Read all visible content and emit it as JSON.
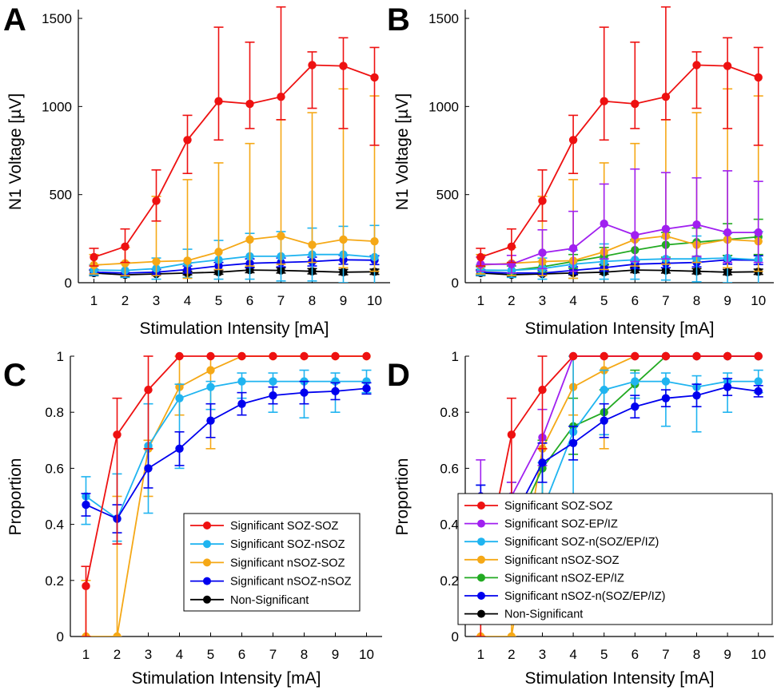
{
  "chart_data": [
    {
      "type": "line",
      "panel_label": "A",
      "xlabel": "Stimulation Intensity [mA]",
      "ylabel": "N1 Voltage [µV]",
      "x": [
        1,
        2,
        3,
        4,
        5,
        6,
        7,
        8,
        9,
        10
      ],
      "xlim": [
        0.5,
        10.5
      ],
      "ylim": [
        0,
        1550
      ],
      "yticks": [
        0,
        500,
        1000,
        1500
      ],
      "legend": null,
      "series": [
        {
          "name": "Non-Significant",
          "color": "#000000",
          "values": [
            55,
            45,
            50,
            55,
            60,
            72,
            70,
            65,
            60,
            62
          ],
          "err_low": [
            15,
            10,
            10,
            10,
            12,
            15,
            15,
            15,
            15,
            15
          ],
          "err_high": [
            15,
            10,
            10,
            10,
            12,
            15,
            15,
            15,
            15,
            15
          ]
        },
        {
          "name": "Significant nSOZ-nSOZ",
          "color": "#0000ee",
          "values": [
            60,
            55,
            60,
            75,
            95,
            110,
            115,
            120,
            130,
            128
          ],
          "err_low": [
            15,
            15,
            15,
            20,
            20,
            25,
            25,
            25,
            25,
            25
          ],
          "err_high": [
            15,
            15,
            15,
            20,
            20,
            25,
            25,
            25,
            25,
            25
          ]
        },
        {
          "name": "Significant SOZ-nSOZ",
          "color": "#1fb4f0",
          "values": [
            72,
            70,
            80,
            110,
            130,
            150,
            150,
            160,
            160,
            145
          ],
          "err_low": [
            30,
            40,
            60,
            80,
            110,
            130,
            140,
            150,
            160,
            180
          ],
          "err_high": [
            30,
            40,
            60,
            80,
            110,
            130,
            140,
            150,
            160,
            180
          ]
        },
        {
          "name": "Significant nSOZ-SOZ",
          "color": "#f5a816",
          "values": [
            100,
            110,
            120,
            125,
            175,
            245,
            265,
            215,
            245,
            235
          ],
          "err_low": [
            50,
            70,
            80,
            100,
            100,
            150,
            160,
            100,
            160,
            170
          ],
          "err_high": [
            60,
            90,
            370,
            460,
            505,
            545,
            660,
            750,
            855,
            825
          ]
        },
        {
          "name": "Significant SOZ-SOZ",
          "color": "#ee1111",
          "values": [
            145,
            205,
            465,
            810,
            1030,
            1015,
            1055,
            1235,
            1230,
            1165
          ],
          "err_low": [
            50,
            90,
            115,
            190,
            220,
            140,
            130,
            245,
            355,
            385
          ],
          "err_high": [
            50,
            100,
            175,
            140,
            420,
            350,
            510,
            75,
            160,
            170
          ]
        }
      ]
    },
    {
      "type": "line",
      "panel_label": "B",
      "xlabel": "Stimulation Intensity [mA]",
      "ylabel": "N1 Voltage [µV]",
      "x": [
        1,
        2,
        3,
        4,
        5,
        6,
        7,
        8,
        9,
        10
      ],
      "xlim": [
        0.5,
        10.5
      ],
      "ylim": [
        0,
        1550
      ],
      "yticks": [
        0,
        500,
        1000,
        1500
      ],
      "legend": null,
      "series": [
        {
          "name": "Non-Significant",
          "color": "#000000",
          "values": [
            55,
            45,
            50,
            55,
            60,
            72,
            70,
            65,
            60,
            62
          ],
          "err_low": [
            15,
            10,
            10,
            10,
            12,
            15,
            15,
            15,
            15,
            15
          ],
          "err_high": [
            15,
            10,
            10,
            10,
            12,
            15,
            15,
            15,
            15,
            15
          ]
        },
        {
          "name": "Significant nSOZ-n(SOZ/EP/IZ)",
          "color": "#0000ee",
          "values": [
            60,
            55,
            55,
            70,
            85,
            105,
            110,
            115,
            130,
            128
          ],
          "err_low": [
            15,
            15,
            15,
            20,
            20,
            25,
            25,
            25,
            25,
            25
          ],
          "err_high": [
            15,
            15,
            15,
            20,
            20,
            25,
            25,
            25,
            25,
            25
          ]
        },
        {
          "name": "Significant nSOZ-EP/IZ",
          "color": "#22aa22",
          "values": [
            70,
            70,
            90,
            120,
            150,
            185,
            215,
            230,
            245,
            260
          ],
          "err_low": [
            20,
            25,
            30,
            40,
            50,
            60,
            70,
            80,
            90,
            100
          ],
          "err_high": [
            20,
            25,
            30,
            40,
            50,
            60,
            70,
            80,
            90,
            100
          ]
        },
        {
          "name": "Significant SOZ-n(SOZ/EP/IZ)",
          "color": "#1fb4f0",
          "values": [
            72,
            70,
            80,
            105,
            120,
            130,
            135,
            135,
            140,
            130
          ],
          "err_low": [
            30,
            40,
            60,
            80,
            100,
            110,
            120,
            130,
            140,
            160
          ],
          "err_high": [
            30,
            40,
            60,
            80,
            100,
            110,
            120,
            130,
            140,
            160
          ]
        },
        {
          "name": "Significant nSOZ-SOZ",
          "color": "#f5a816",
          "values": [
            100,
            110,
            120,
            125,
            175,
            245,
            265,
            215,
            245,
            235
          ],
          "err_low": [
            50,
            70,
            80,
            100,
            100,
            150,
            160,
            100,
            160,
            170
          ],
          "err_high": [
            60,
            90,
            370,
            460,
            505,
            545,
            660,
            750,
            855,
            825
          ]
        },
        {
          "name": "Significant SOZ-EP/IZ",
          "color": "#a020f0",
          "values": [
            105,
            105,
            170,
            195,
            335,
            270,
            305,
            330,
            285,
            285
          ],
          "err_low": [
            40,
            50,
            90,
            130,
            200,
            150,
            170,
            180,
            170,
            170
          ],
          "err_high": [
            40,
            50,
            130,
            210,
            225,
            375,
            320,
            265,
            350,
            290
          ]
        },
        {
          "name": "Significant SOZ-SOZ",
          "color": "#ee1111",
          "values": [
            145,
            205,
            465,
            810,
            1030,
            1015,
            1055,
            1235,
            1230,
            1165
          ],
          "err_low": [
            50,
            90,
            115,
            190,
            220,
            140,
            130,
            245,
            355,
            385
          ],
          "err_high": [
            50,
            100,
            175,
            140,
            420,
            350,
            510,
            75,
            160,
            170
          ]
        }
      ]
    },
    {
      "type": "line",
      "panel_label": "C",
      "xlabel": "Stimulation Intensity [mA]",
      "ylabel": "Proportion",
      "x": [
        1,
        2,
        3,
        4,
        5,
        6,
        7,
        8,
        9,
        10
      ],
      "xlim": [
        0.5,
        10.5
      ],
      "ylim": [
        0,
        1
      ],
      "yticks": [
        0,
        0.2,
        0.4,
        0.6,
        0.8,
        1
      ],
      "legend": "bottom-right",
      "legend_entries": [
        "Significant SOZ-SOZ",
        "Significant SOZ-nSOZ",
        "Significant nSOZ-SOZ",
        "Significant nSOZ-nSOZ",
        "Non-Significant"
      ],
      "legend_colors": [
        "#ee1111",
        "#1fb4f0",
        "#f5a816",
        "#0000ee",
        "#000000"
      ],
      "series": [
        {
          "name": "Significant nSOZ-SOZ",
          "color": "#f5a816",
          "values": [
            0,
            0,
            0.67,
            0.89,
            0.95,
            1,
            1,
            1,
            1,
            1
          ],
          "err_low": [
            0,
            0,
            0.17,
            0.1,
            0.28,
            0,
            0,
            0,
            0,
            0
          ],
          "err_high": [
            0.2,
            0.5,
            0.03,
            0.11,
            0.05,
            0,
            0,
            0,
            0,
            0
          ]
        },
        {
          "name": "Significant SOZ-nSOZ",
          "color": "#1fb4f0",
          "values": [
            0.5,
            0.42,
            0.68,
            0.85,
            0.89,
            0.91,
            0.91,
            0.91,
            0.91,
            0.91
          ],
          "err_low": [
            0.1,
            0.08,
            0.24,
            0.25,
            0.08,
            0.06,
            0.11,
            0.13,
            0.11,
            0.04
          ],
          "err_high": [
            0.07,
            0.16,
            0.15,
            0.05,
            0.02,
            0.03,
            0.03,
            0.04,
            0.03,
            0.04
          ]
        },
        {
          "name": "Significant nSOZ-nSOZ",
          "color": "#0000ee",
          "values": [
            0.47,
            0.42,
            0.6,
            0.67,
            0.77,
            0.83,
            0.86,
            0.87,
            0.875,
            0.885
          ],
          "err_low": [
            0.04,
            0.05,
            0.07,
            0.06,
            0.06,
            0.04,
            0.03,
            0.04,
            0.03,
            0.02
          ],
          "err_high": [
            0.04,
            0.05,
            0.07,
            0.06,
            0.06,
            0.04,
            0.03,
            0.04,
            0.03,
            0.02
          ]
        },
        {
          "name": "Significant SOZ-SOZ",
          "color": "#ee1111",
          "values": [
            0.18,
            0.72,
            0.88,
            1,
            1,
            1,
            1,
            1,
            1,
            1
          ],
          "err_low": [
            0.18,
            0.39,
            0.21,
            0,
            0,
            0,
            0,
            0,
            0,
            0
          ],
          "err_high": [
            0.07,
            0.13,
            0.12,
            0,
            0,
            0,
            0,
            0,
            0,
            0
          ]
        }
      ]
    },
    {
      "type": "line",
      "panel_label": "D",
      "xlabel": "Stimulation Intensity [mA]",
      "ylabel": "Proportion",
      "x": [
        1,
        2,
        3,
        4,
        5,
        6,
        7,
        8,
        9,
        10
      ],
      "xlim": [
        0.5,
        10.5
      ],
      "ylim": [
        0,
        1
      ],
      "yticks": [
        0,
        0.2,
        0.4,
        0.6,
        0.8,
        1
      ],
      "legend": "bottom-right",
      "legend_entries": [
        "Significant SOZ-SOZ",
        "Significant SOZ-EP/IZ",
        "Significant SOZ-n(SOZ/EP/IZ)",
        "Significant nSOZ-SOZ",
        "Significant nSOZ-EP/IZ",
        "Significant nSOZ-n(SOZ/EP/IZ)",
        "Non-Significant"
      ],
      "legend_colors": [
        "#ee1111",
        "#a020f0",
        "#1fb4f0",
        "#f5a816",
        "#22aa22",
        "#0000ee",
        "#000000"
      ],
      "series": [
        {
          "name": "Significant nSOZ-SOZ",
          "color": "#f5a816",
          "values": [
            0,
            0,
            0.67,
            0.89,
            0.95,
            1,
            1,
            1,
            1,
            1
          ],
          "err_low": [
            0,
            0,
            0.17,
            0.1,
            0.28,
            0,
            0,
            0,
            0,
            0
          ],
          "err_high": [
            0.2,
            0.5,
            0.03,
            0.11,
            0.05,
            0,
            0,
            0,
            0,
            0
          ]
        },
        {
          "name": "Significant nSOZ-EP/IZ",
          "color": "#22aa22",
          "values": [
            0.33,
            0.36,
            0.6,
            0.75,
            0.8,
            0.9,
            1,
            1,
            1,
            1
          ],
          "err_low": [
            0.05,
            0.1,
            0.1,
            0.1,
            0.08,
            0.05,
            0,
            0,
            0,
            0
          ],
          "err_high": [
            0.05,
            0.1,
            0.1,
            0.1,
            0.08,
            0.05,
            0,
            0,
            0,
            0
          ]
        },
        {
          "name": "Significant SOZ-n(SOZ/EP/IZ)",
          "color": "#1fb4f0",
          "values": [
            0.47,
            0.4,
            0.45,
            0.73,
            0.88,
            0.91,
            0.91,
            0.89,
            0.91,
            0.91
          ],
          "err_low": [
            0.1,
            0.08,
            0.05,
            0.25,
            0.16,
            0.06,
            0.16,
            0.16,
            0.11,
            0.04
          ],
          "err_high": [
            0.07,
            0.15,
            0.17,
            0.27,
            0.07,
            0.03,
            0.03,
            0.04,
            0.03,
            0.04
          ]
        },
        {
          "name": "Significant SOZ-EP/IZ",
          "color": "#a020f0",
          "values": [
            0.5,
            0.5,
            0.71,
            1,
            1,
            1,
            1,
            1,
            1,
            1
          ],
          "err_low": [
            0.15,
            0.2,
            0.1,
            0,
            0,
            0,
            0,
            0,
            0,
            0
          ],
          "err_high": [
            0.13,
            0.05,
            0.1,
            0,
            0,
            0,
            0,
            0,
            0,
            0
          ]
        },
        {
          "name": "Significant nSOZ-n(SOZ/EP/IZ)",
          "color": "#0000ee",
          "values": [
            0.5,
            0.41,
            0.62,
            0.69,
            0.77,
            0.82,
            0.85,
            0.86,
            0.89,
            0.875
          ],
          "err_low": [
            0.04,
            0.05,
            0.07,
            0.06,
            0.06,
            0.04,
            0.03,
            0.04,
            0.03,
            0.02
          ],
          "err_high": [
            0.04,
            0.05,
            0.07,
            0.06,
            0.06,
            0.04,
            0.03,
            0.04,
            0.03,
            0.02
          ]
        },
        {
          "name": "Significant SOZ-SOZ",
          "color": "#ee1111",
          "values": [
            0.18,
            0.72,
            0.88,
            1,
            1,
            1,
            1,
            1,
            1,
            1
          ],
          "err_low": [
            0.18,
            0.39,
            0.21,
            0,
            0,
            0,
            0,
            0,
            0,
            0
          ],
          "err_high": [
            0.07,
            0.13,
            0.12,
            0,
            0,
            0,
            0,
            0,
            0,
            0
          ]
        }
      ]
    }
  ]
}
